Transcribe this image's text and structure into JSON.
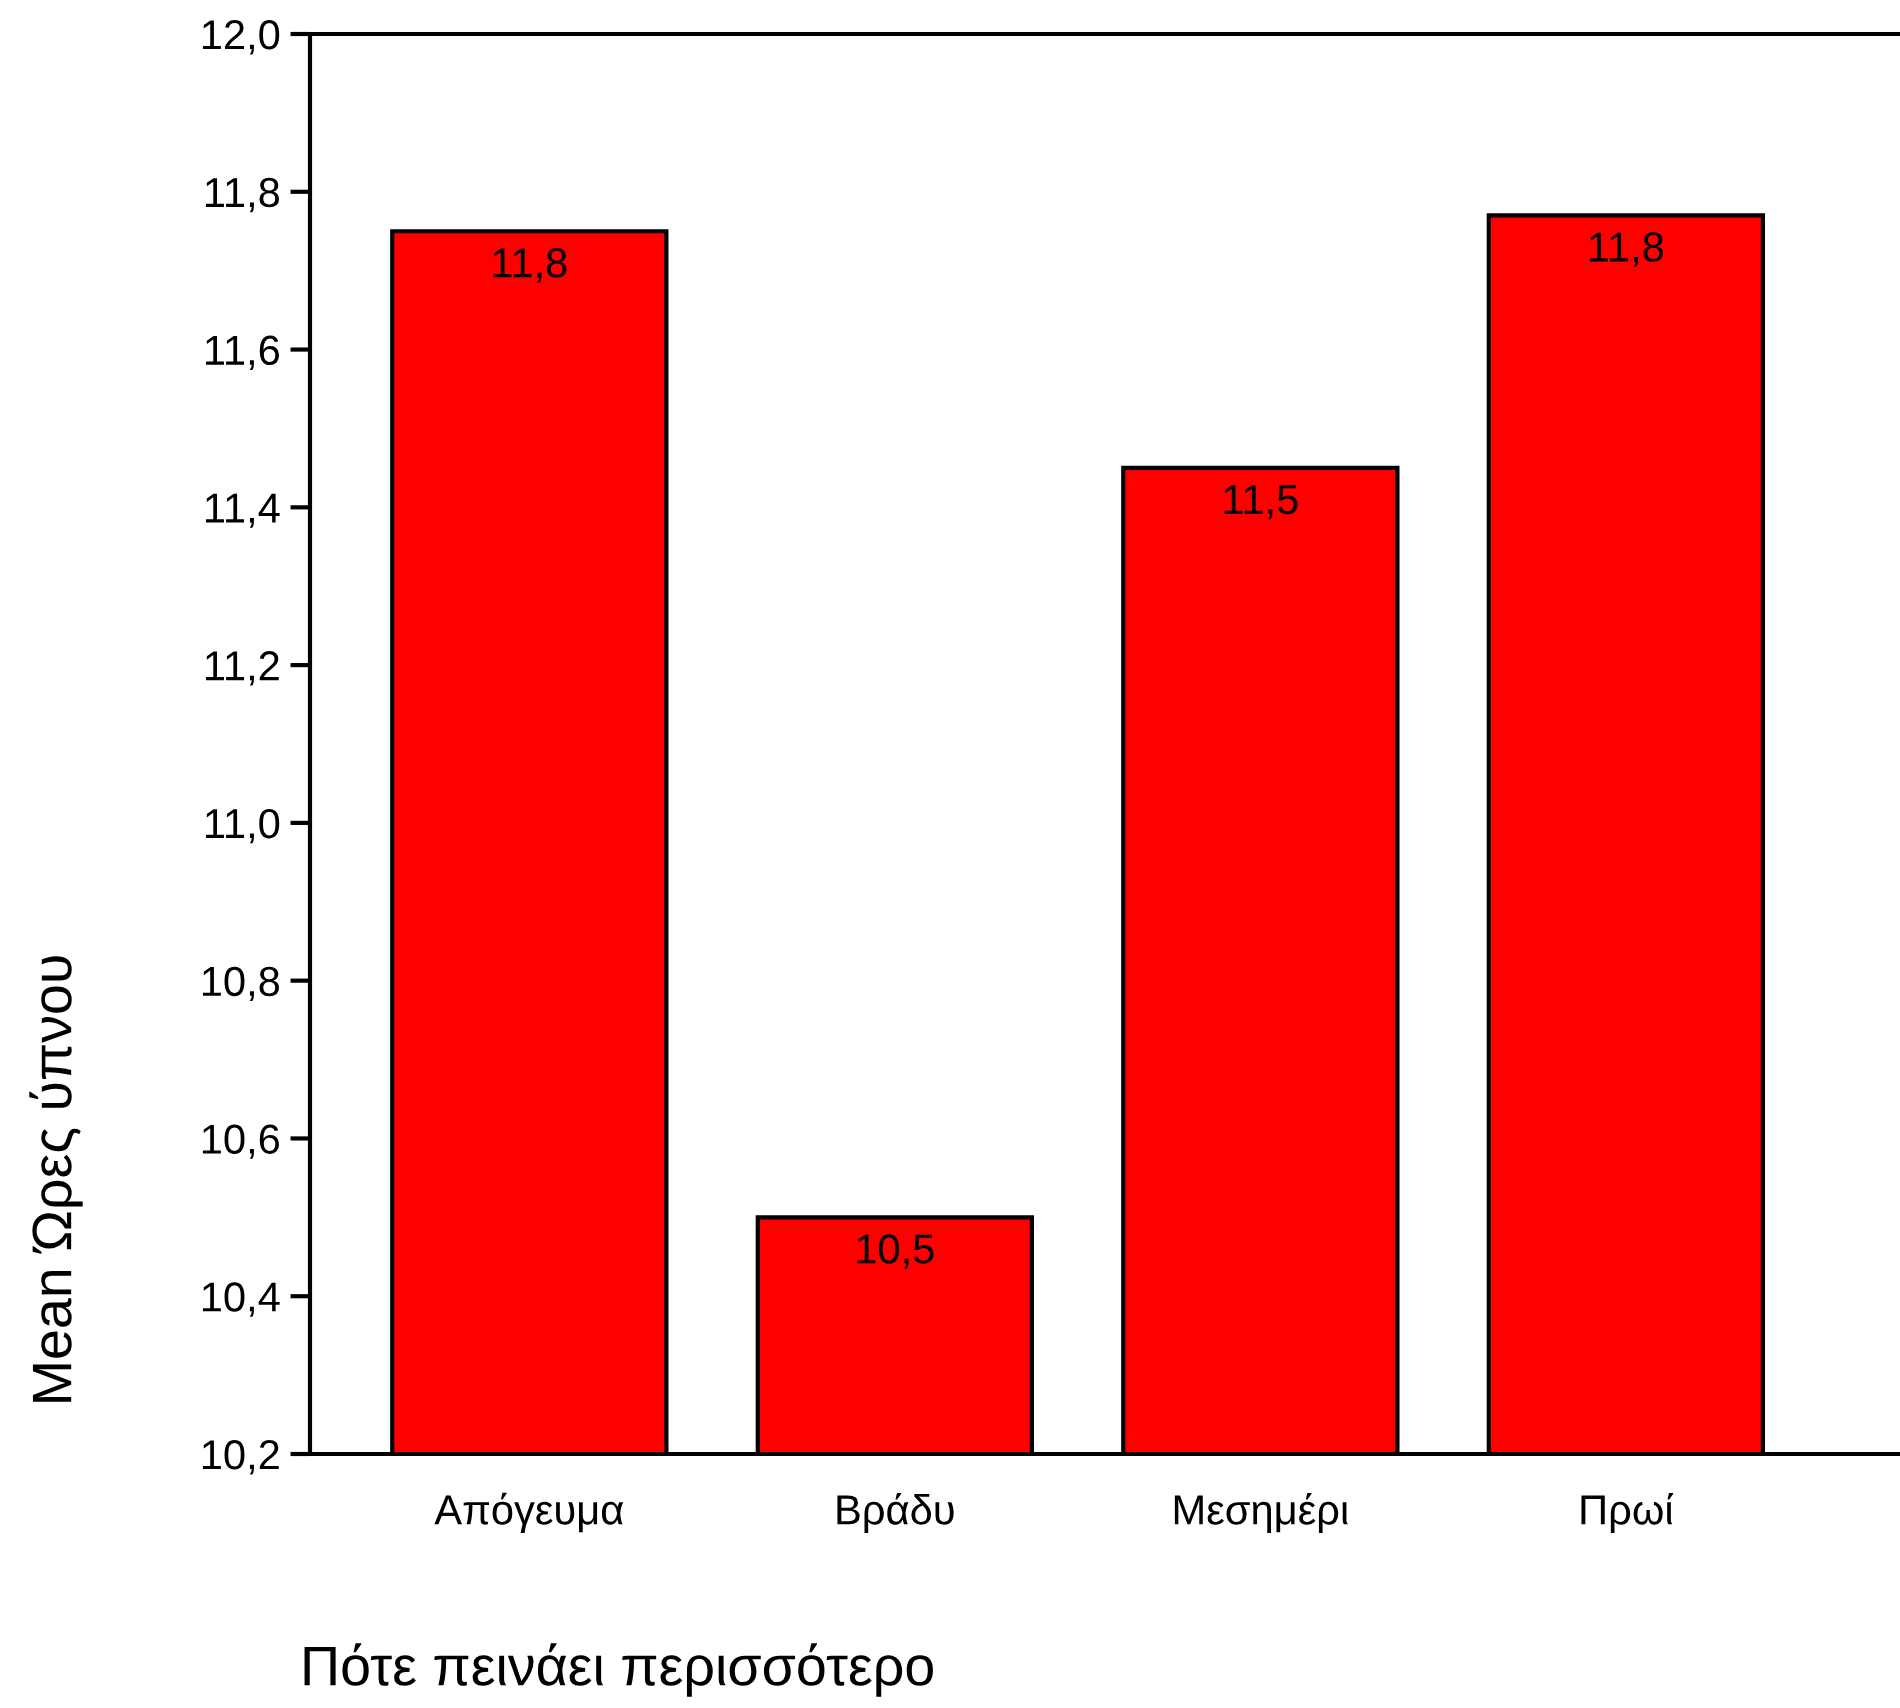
{
  "chart_data": {
    "type": "bar",
    "xlabel": "Πότε πεινάει περισσότερο",
    "ylabel": "Mean Ώρες ύπνου",
    "categories": [
      "Απόγευμα",
      "Βράδυ",
      "Μεσημέρι",
      "Πρωί"
    ],
    "values": [
      11.75,
      10.5,
      11.45,
      11.77
    ],
    "value_labels": [
      "11,8",
      "10,5",
      "11,5",
      "11,8"
    ],
    "color": "#ff0000",
    "ylim": [
      10.2,
      12.0
    ],
    "yticks": [
      {
        "value": 10.2,
        "label": "10,2"
      },
      {
        "value": 10.4,
        "label": "10,4"
      },
      {
        "value": 10.6,
        "label": "10,6"
      },
      {
        "value": 10.8,
        "label": "10,8"
      },
      {
        "value": 11.0,
        "label": "11,0"
      },
      {
        "value": 11.2,
        "label": "11,2"
      },
      {
        "value": 11.4,
        "label": "11,4"
      },
      {
        "value": 11.6,
        "label": "11,6"
      },
      {
        "value": 11.8,
        "label": "11,8"
      },
      {
        "value": 12.0,
        "label": "12,0"
      }
    ],
    "grid": false,
    "legend": false
  }
}
